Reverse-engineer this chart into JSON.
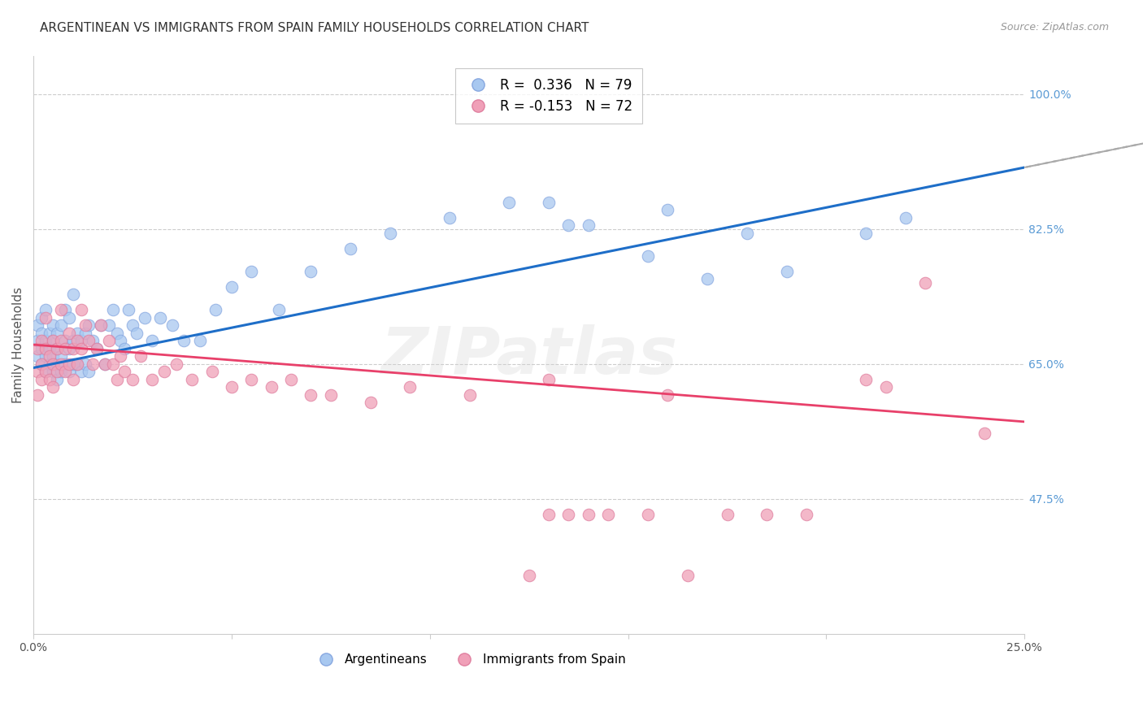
{
  "title": "ARGENTINEAN VS IMMIGRANTS FROM SPAIN FAMILY HOUSEHOLDS CORRELATION CHART",
  "source": "Source: ZipAtlas.com",
  "ylabel": "Family Households",
  "blue_line_color": "#1E6EC8",
  "pink_line_color": "#E8406A",
  "blue_dot_color": "#A8C8F0",
  "pink_dot_color": "#F0A0B8",
  "dot_edge_blue": "#88A8E0",
  "dot_edge_pink": "#E080A0",
  "background_color": "#FFFFFF",
  "grid_color": "#CCCCCC",
  "right_axis_color": "#5B9BD5",
  "title_fontsize": 11,
  "watermark": "ZIPatlas",
  "xlim": [
    0.0,
    0.25
  ],
  "ylim": [
    0.3,
    1.05
  ],
  "yticks_right": [
    0.475,
    0.65,
    0.825,
    1.0
  ],
  "blue_R": 0.336,
  "blue_N": 79,
  "pink_R": -0.153,
  "pink_N": 72,
  "blue_line_x0": 0.0,
  "blue_line_y0": 0.645,
  "blue_line_x1": 0.25,
  "blue_line_y1": 0.905,
  "pink_line_x0": 0.0,
  "pink_line_y0": 0.675,
  "pink_line_x1": 0.25,
  "pink_line_y1": 0.575,
  "argentineans_x": [
    0.001,
    0.001,
    0.001,
    0.002,
    0.002,
    0.002,
    0.002,
    0.003,
    0.003,
    0.003,
    0.003,
    0.004,
    0.004,
    0.004,
    0.005,
    0.005,
    0.005,
    0.005,
    0.006,
    0.006,
    0.006,
    0.006,
    0.007,
    0.007,
    0.007,
    0.008,
    0.008,
    0.008,
    0.009,
    0.009,
    0.009,
    0.01,
    0.01,
    0.01,
    0.011,
    0.011,
    0.012,
    0.012,
    0.013,
    0.013,
    0.014,
    0.014,
    0.015,
    0.016,
    0.017,
    0.018,
    0.019,
    0.02,
    0.021,
    0.022,
    0.023,
    0.024,
    0.025,
    0.026,
    0.028,
    0.03,
    0.032,
    0.035,
    0.038,
    0.042,
    0.046,
    0.05,
    0.055,
    0.062,
    0.07,
    0.08,
    0.09,
    0.105,
    0.12,
    0.14,
    0.16,
    0.18,
    0.19,
    0.21,
    0.22,
    0.155,
    0.17,
    0.135,
    0.13
  ],
  "argentineans_y": [
    0.66,
    0.68,
    0.7,
    0.65,
    0.67,
    0.69,
    0.71,
    0.64,
    0.66,
    0.68,
    0.72,
    0.65,
    0.67,
    0.69,
    0.64,
    0.66,
    0.68,
    0.7,
    0.63,
    0.65,
    0.67,
    0.69,
    0.64,
    0.66,
    0.7,
    0.65,
    0.68,
    0.72,
    0.64,
    0.67,
    0.71,
    0.65,
    0.68,
    0.74,
    0.65,
    0.69,
    0.64,
    0.68,
    0.65,
    0.69,
    0.64,
    0.7,
    0.68,
    0.67,
    0.7,
    0.65,
    0.7,
    0.72,
    0.69,
    0.68,
    0.67,
    0.72,
    0.7,
    0.69,
    0.71,
    0.68,
    0.71,
    0.7,
    0.68,
    0.68,
    0.72,
    0.75,
    0.77,
    0.72,
    0.77,
    0.8,
    0.82,
    0.84,
    0.86,
    0.83,
    0.85,
    0.82,
    0.77,
    0.82,
    0.84,
    0.79,
    0.76,
    0.83,
    0.86
  ],
  "spain_x": [
    0.001,
    0.001,
    0.001,
    0.002,
    0.002,
    0.002,
    0.003,
    0.003,
    0.003,
    0.004,
    0.004,
    0.005,
    0.005,
    0.005,
    0.006,
    0.006,
    0.007,
    0.007,
    0.007,
    0.008,
    0.008,
    0.009,
    0.009,
    0.01,
    0.01,
    0.011,
    0.011,
    0.012,
    0.012,
    0.013,
    0.014,
    0.015,
    0.016,
    0.017,
    0.018,
    0.019,
    0.02,
    0.021,
    0.022,
    0.023,
    0.025,
    0.027,
    0.03,
    0.033,
    0.036,
    0.04,
    0.045,
    0.05,
    0.055,
    0.06,
    0.065,
    0.07,
    0.075,
    0.085,
    0.095,
    0.11,
    0.13,
    0.16,
    0.13,
    0.14,
    0.155,
    0.185,
    0.21,
    0.135,
    0.145,
    0.175,
    0.125,
    0.165,
    0.195,
    0.215,
    0.225,
    0.24
  ],
  "spain_y": [
    0.67,
    0.64,
    0.61,
    0.68,
    0.65,
    0.63,
    0.71,
    0.67,
    0.64,
    0.66,
    0.63,
    0.68,
    0.65,
    0.62,
    0.67,
    0.64,
    0.72,
    0.68,
    0.65,
    0.67,
    0.64,
    0.69,
    0.65,
    0.67,
    0.63,
    0.68,
    0.65,
    0.72,
    0.67,
    0.7,
    0.68,
    0.65,
    0.67,
    0.7,
    0.65,
    0.68,
    0.65,
    0.63,
    0.66,
    0.64,
    0.63,
    0.66,
    0.63,
    0.64,
    0.65,
    0.63,
    0.64,
    0.62,
    0.63,
    0.62,
    0.63,
    0.61,
    0.61,
    0.6,
    0.62,
    0.61,
    0.63,
    0.61,
    0.455,
    0.455,
    0.455,
    0.455,
    0.63,
    0.455,
    0.455,
    0.455,
    0.375,
    0.375,
    0.455,
    0.62,
    0.755,
    0.56
  ]
}
